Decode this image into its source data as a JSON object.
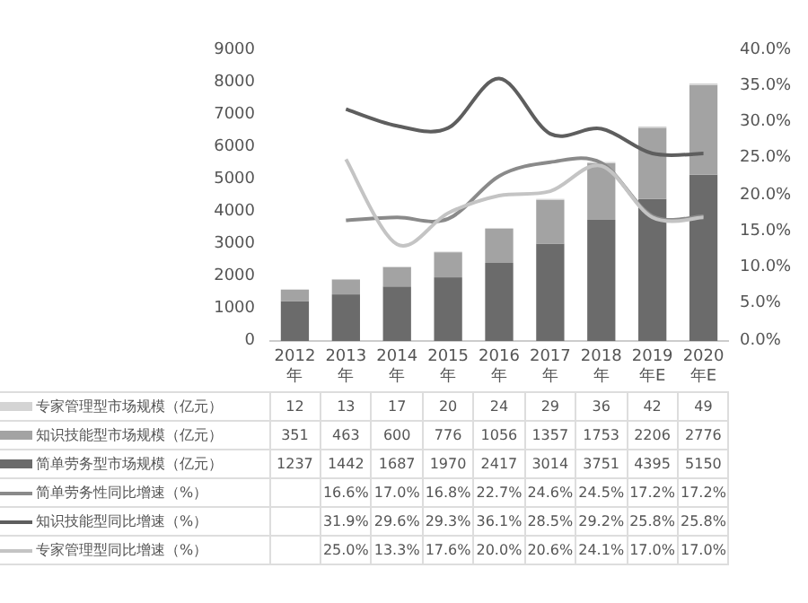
{
  "chart_data": {
    "type": "bar",
    "stacked": true,
    "categories": [
      "2012年",
      "2013年",
      "2014年",
      "2015年",
      "2016年",
      "2017年",
      "2018年",
      "2019年E",
      "2020年E"
    ],
    "series": [
      {
        "name": "简单劳务型市场规模（亿元）",
        "color": "#6b6b6b",
        "values": [
          1237,
          1442,
          1687,
          1970,
          2417,
          3014,
          3751,
          4395,
          5150
        ],
        "value_labels": [
          "1237",
          "1442",
          "1687",
          "1970",
          "2417",
          "3014",
          "3751",
          "4395",
          "5150"
        ]
      },
      {
        "name": "知识技能型市场规模（亿元）",
        "color": "#a3a3a3",
        "values": [
          351,
          463,
          600,
          776,
          1056,
          1357,
          1753,
          2206,
          2776
        ],
        "value_labels": [
          "351",
          "463",
          "600",
          "776",
          "1056",
          "1357",
          "1753",
          "2206",
          "2776"
        ]
      },
      {
        "name": "专家管理型市场规模（亿元）",
        "color": "#d4d4d4",
        "values": [
          12,
          13,
          17,
          20,
          24,
          29,
          36,
          42,
          49
        ],
        "value_labels": [
          "12",
          "13",
          "17",
          "20",
          "24",
          "29",
          "36",
          "42",
          "49"
        ]
      },
      {
        "name": "简单劳务性同比增速（%）",
        "type": "line",
        "axis": "y2",
        "color": "#8a8a8a",
        "values": [
          null,
          16.6,
          17.0,
          16.8,
          22.7,
          24.6,
          24.5,
          17.2,
          17.2
        ],
        "value_labels": [
          null,
          "16.6%",
          "17.0%",
          "16.8%",
          "22.7%",
          "24.6%",
          "24.5%",
          "17.2%",
          "17.2%"
        ]
      },
      {
        "name": "知识技能型同比增速（%）",
        "type": "line",
        "axis": "y2",
        "color": "#5e5e5e",
        "values": [
          null,
          31.9,
          29.6,
          29.3,
          36.1,
          28.5,
          29.2,
          25.8,
          25.8
        ],
        "value_labels": [
          null,
          "31.9%",
          "29.6%",
          "29.3%",
          "36.1%",
          "28.5%",
          "29.2%",
          "25.8%",
          "25.8%"
        ]
      },
      {
        "name": "专家管理型同比增速（%）",
        "type": "line",
        "axis": "y2",
        "color": "#c4c4c4",
        "values": [
          null,
          25.0,
          13.3,
          17.6,
          20.0,
          20.6,
          24.1,
          17.0,
          17.0
        ],
        "value_labels": [
          null,
          "25.0%",
          "13.3%",
          "17.6%",
          "20.0%",
          "20.6%",
          "24.1%",
          "17.0%",
          "17.0%"
        ]
      }
    ],
    "ylim": [
      0,
      9000
    ],
    "yticks": [
      0,
      1000,
      2000,
      3000,
      4000,
      5000,
      6000,
      7000,
      8000,
      9000
    ],
    "y2lim": [
      0,
      40
    ],
    "y2ticks": [
      {
        "value": 0,
        "label": "0.0%"
      },
      {
        "value": 5,
        "label": "5.0%"
      },
      {
        "value": 10,
        "label": "10.0%"
      },
      {
        "value": 15,
        "label": "15.0%"
      },
      {
        "value": 20,
        "label": "20.0%"
      },
      {
        "value": 25,
        "label": "25.0%"
      },
      {
        "value": 30,
        "label": "30.0%"
      },
      {
        "value": 35,
        "label": "35.0%"
      },
      {
        "value": 40,
        "label": "40.0%"
      }
    ],
    "legend": "bottom"
  }
}
